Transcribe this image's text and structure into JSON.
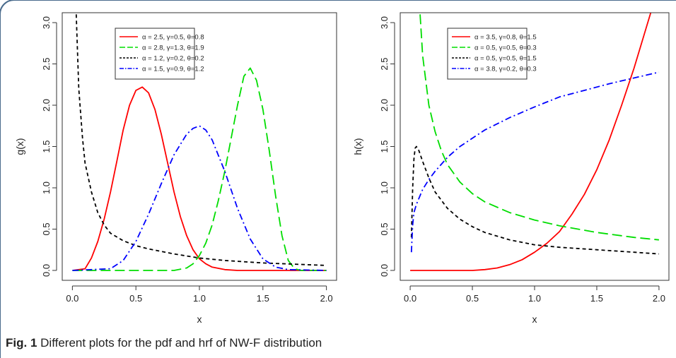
{
  "caption": {
    "label": "Fig. 1",
    "text": "Different plots for the pdf and hrf of NW-F distribution"
  },
  "colors": {
    "red": "#ff0000",
    "green": "#00dd00",
    "black": "#000000",
    "blue": "#0000ff",
    "frame": "#555555"
  },
  "chart_data": [
    {
      "type": "line",
      "xlabel": "x",
      "ylabel": "g(x)",
      "xlim": [
        0.0,
        2.0
      ],
      "ylim": [
        0.0,
        3.0
      ],
      "xticks": [
        "0.0",
        "0.5",
        "1.0",
        "1.5",
        "2.0"
      ],
      "yticks": [
        "0.0",
        "0.5",
        "1.0",
        "1.5",
        "2.0",
        "2.5",
        "3.0"
      ],
      "grid": false,
      "legend_position": "top-center",
      "series": [
        {
          "name": "α = 2.5, γ=0.5, θ=0.8",
          "color": "#ff0000",
          "dash": "solid",
          "x": [
            0.0,
            0.1,
            0.15,
            0.2,
            0.25,
            0.3,
            0.35,
            0.4,
            0.45,
            0.5,
            0.55,
            0.6,
            0.65,
            0.7,
            0.75,
            0.8,
            0.85,
            0.9,
            0.95,
            1.0,
            1.05,
            1.1,
            1.2,
            1.3,
            1.5,
            2.0
          ],
          "y": [
            0.0,
            0.02,
            0.15,
            0.35,
            0.62,
            0.95,
            1.32,
            1.7,
            2.0,
            2.18,
            2.22,
            2.15,
            1.95,
            1.65,
            1.3,
            0.95,
            0.65,
            0.42,
            0.25,
            0.14,
            0.08,
            0.04,
            0.01,
            0.0,
            0.0,
            0.0
          ]
        },
        {
          "name": "α = 2.8, γ=1.3, θ=1.9",
          "color": "#00dd00",
          "dash": "long",
          "x": [
            0.0,
            0.8,
            0.9,
            0.95,
            1.0,
            1.05,
            1.1,
            1.15,
            1.2,
            1.25,
            1.3,
            1.35,
            1.4,
            1.45,
            1.5,
            1.55,
            1.6,
            1.65,
            1.7,
            1.75,
            1.8,
            2.0
          ],
          "y": [
            0.0,
            0.0,
            0.03,
            0.08,
            0.18,
            0.33,
            0.55,
            0.85,
            1.2,
            1.6,
            2.0,
            2.35,
            2.45,
            2.3,
            1.95,
            1.45,
            0.9,
            0.42,
            0.12,
            0.02,
            0.0,
            0.0
          ]
        },
        {
          "name": "α = 1.2, γ=0.2, θ=0.2",
          "color": "#000000",
          "dash": "short",
          "x": [
            0.03,
            0.05,
            0.08,
            0.1,
            0.15,
            0.2,
            0.25,
            0.3,
            0.4,
            0.5,
            0.6,
            0.8,
            1.0,
            1.2,
            1.5,
            2.0
          ],
          "y": [
            3.1,
            2.2,
            1.6,
            1.3,
            0.95,
            0.7,
            0.55,
            0.45,
            0.36,
            0.3,
            0.26,
            0.2,
            0.15,
            0.12,
            0.09,
            0.06
          ]
        },
        {
          "name": "α = 1.5, γ=0.9, θ=1.2",
          "color": "#0000ff",
          "dash": "dashdot",
          "x": [
            0.0,
            0.3,
            0.4,
            0.5,
            0.6,
            0.7,
            0.8,
            0.9,
            0.95,
            1.0,
            1.05,
            1.1,
            1.2,
            1.3,
            1.4,
            1.5,
            1.6,
            1.7,
            2.0
          ],
          "y": [
            0.0,
            0.02,
            0.12,
            0.35,
            0.68,
            1.05,
            1.4,
            1.65,
            1.72,
            1.75,
            1.7,
            1.58,
            1.2,
            0.75,
            0.38,
            0.14,
            0.04,
            0.01,
            0.0
          ]
        }
      ]
    },
    {
      "type": "line",
      "xlabel": "x",
      "ylabel": "h(x)",
      "xlim": [
        0.0,
        2.0
      ],
      "ylim": [
        0.0,
        3.0
      ],
      "xticks": [
        "0.0",
        "0.5",
        "1.0",
        "1.5",
        "2.0"
      ],
      "yticks": [
        "0.0",
        "0.5",
        "1.0",
        "1.5",
        "2.0",
        "2.5",
        "3.0"
      ],
      "grid": false,
      "legend_position": "top-center",
      "series": [
        {
          "name": "α = 3.5, γ=0.8, θ=1.5",
          "color": "#ff0000",
          "dash": "solid",
          "x": [
            0.0,
            0.4,
            0.5,
            0.6,
            0.7,
            0.8,
            0.9,
            1.0,
            1.1,
            1.2,
            1.3,
            1.4,
            1.5,
            1.6,
            1.7,
            1.8,
            1.9,
            1.95
          ],
          "y": [
            0.0,
            0.0,
            0.0,
            0.01,
            0.03,
            0.07,
            0.13,
            0.22,
            0.33,
            0.47,
            0.68,
            0.92,
            1.22,
            1.58,
            2.0,
            2.45,
            2.95,
            3.2
          ]
        },
        {
          "name": "α = 0.5, γ=0.5, θ=0.3",
          "color": "#00dd00",
          "dash": "long",
          "x": [
            0.08,
            0.1,
            0.15,
            0.2,
            0.25,
            0.3,
            0.4,
            0.5,
            0.6,
            0.8,
            1.0,
            1.2,
            1.5,
            1.8,
            2.0
          ],
          "y": [
            3.1,
            2.6,
            2.0,
            1.68,
            1.45,
            1.28,
            1.07,
            0.93,
            0.83,
            0.7,
            0.61,
            0.54,
            0.46,
            0.4,
            0.37
          ]
        },
        {
          "name": "α = 0.5, γ=0.5, θ=1.5",
          "color": "#000000",
          "dash": "short",
          "x": [
            0.01,
            0.02,
            0.03,
            0.04,
            0.05,
            0.07,
            0.1,
            0.15,
            0.2,
            0.3,
            0.4,
            0.5,
            0.6,
            0.8,
            1.0,
            1.2,
            1.5,
            1.8,
            2.0
          ],
          "y": [
            0.4,
            1.0,
            1.35,
            1.48,
            1.5,
            1.45,
            1.32,
            1.12,
            0.95,
            0.75,
            0.62,
            0.53,
            0.46,
            0.37,
            0.31,
            0.28,
            0.25,
            0.22,
            0.2
          ]
        },
        {
          "name": "α = 3.8, γ=0.2, θ=0.3",
          "color": "#0000ff",
          "dash": "dashdot",
          "x": [
            0.01,
            0.02,
            0.03,
            0.05,
            0.1,
            0.15,
            0.2,
            0.3,
            0.4,
            0.5,
            0.6,
            0.8,
            1.0,
            1.2,
            1.4,
            1.6,
            1.8,
            2.0
          ],
          "y": [
            0.22,
            0.55,
            0.7,
            0.8,
            0.98,
            1.1,
            1.2,
            1.37,
            1.5,
            1.6,
            1.7,
            1.85,
            1.98,
            2.1,
            2.18,
            2.26,
            2.33,
            2.4
          ]
        }
      ]
    }
  ]
}
